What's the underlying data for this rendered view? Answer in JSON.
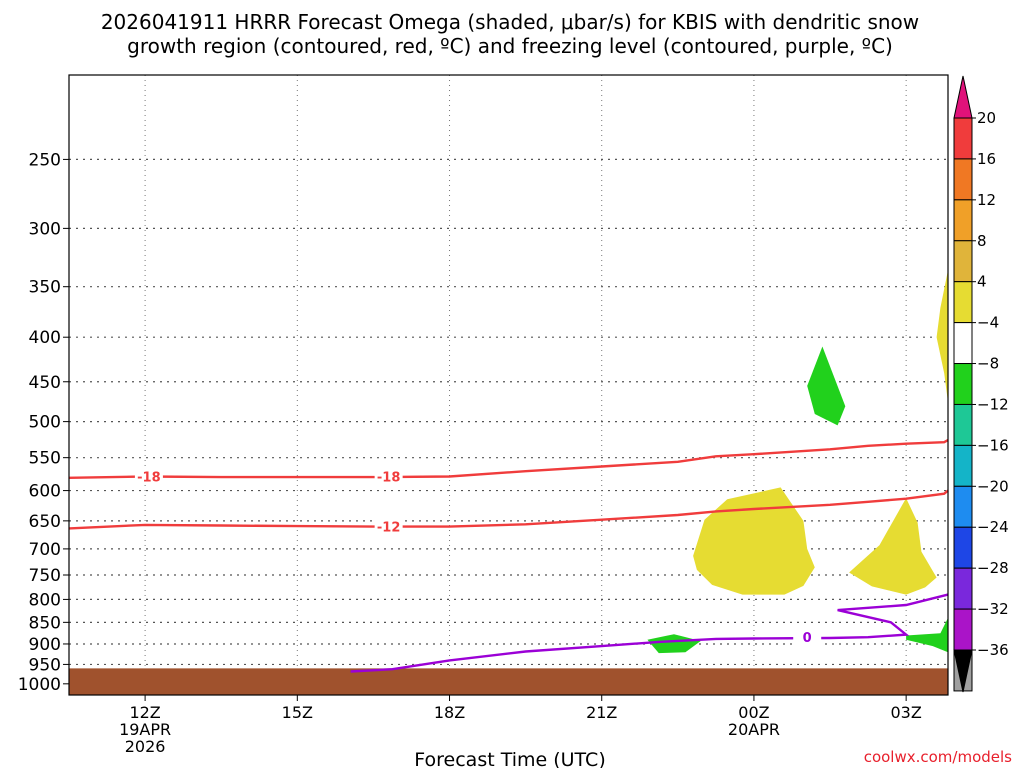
{
  "title_line1": "2026041911 HRRR Forecast Omega (shaded, μbar/s) for KBIS with dendritic snow",
  "title_line2": "growth region (contoured, red, ºC) and freezing level (contoured, purple, ºC)",
  "credit": "coolwx.com/models",
  "chart_data": {
    "type": "area",
    "xlabel": "Forecast Time (UTC)",
    "x_unit": "hours since 2026-04-19 10Z",
    "xlim": [
      0,
      23.1
    ],
    "y_levels": [
      250,
      300,
      350,
      400,
      450,
      500,
      550,
      600,
      650,
      700,
      750,
      800,
      850,
      900,
      950,
      1000
    ],
    "ylim": [
      200,
      1030
    ],
    "y_scale": "log-pressure",
    "grid": true,
    "x_ticks": [
      {
        "x": 2,
        "lines": [
          "12Z",
          "19APR",
          "2026"
        ]
      },
      {
        "x": 6,
        "lines": [
          "15Z"
        ]
      },
      {
        "x": 10,
        "lines": [
          "18Z"
        ]
      },
      {
        "x": 14,
        "lines": [
          "21Z"
        ]
      },
      {
        "x": 18,
        "lines": [
          "00Z",
          "20APR"
        ]
      },
      {
        "x": 22,
        "lines": [
          "03Z"
        ]
      }
    ],
    "contours": [
      {
        "name": "-18",
        "color": "#f03c3c",
        "points": [
          [
            0,
            580
          ],
          [
            2,
            578
          ],
          [
            4,
            579
          ],
          [
            6,
            579
          ],
          [
            8,
            579
          ],
          [
            10,
            578
          ],
          [
            12,
            570
          ],
          [
            14,
            563
          ],
          [
            16,
            556
          ],
          [
            17,
            548
          ],
          [
            18,
            545
          ],
          [
            20,
            538
          ],
          [
            21,
            533
          ],
          [
            22,
            530
          ],
          [
            23,
            528
          ],
          [
            23.1,
            525
          ]
        ],
        "labels": [
          {
            "x": 2.1,
            "p": 578,
            "text": "-18"
          },
          {
            "x": 8.4,
            "p": 578,
            "text": "-18"
          }
        ]
      },
      {
        "name": "-12",
        "color": "#f03c3c",
        "points": [
          [
            0,
            663
          ],
          [
            2,
            657
          ],
          [
            4,
            658
          ],
          [
            6,
            659
          ],
          [
            8,
            660
          ],
          [
            10,
            660
          ],
          [
            12,
            656
          ],
          [
            14,
            648
          ],
          [
            16,
            640
          ],
          [
            17,
            634
          ],
          [
            18,
            630
          ],
          [
            20,
            623
          ],
          [
            21,
            618
          ],
          [
            22,
            613
          ],
          [
            23,
            605
          ],
          [
            23.1,
            600
          ]
        ],
        "labels": [
          {
            "x": 8.4,
            "p": 660,
            "text": "-12"
          }
        ]
      },
      {
        "name": "0",
        "color": "#9b00d6",
        "points": [
          [
            7.4,
            968
          ],
          [
            8.5,
            962
          ],
          [
            10,
            940
          ],
          [
            12,
            918
          ],
          [
            14,
            905
          ],
          [
            15.5,
            895
          ],
          [
            17,
            888
          ],
          [
            18,
            887
          ],
          [
            20,
            886
          ],
          [
            21,
            884
          ],
          [
            22,
            878
          ],
          [
            21.6,
            850
          ],
          [
            20.2,
            823
          ],
          [
            22,
            812
          ],
          [
            23.1,
            790
          ]
        ],
        "labels": [
          {
            "x": 19.4,
            "p": 884,
            "text": "0"
          }
        ]
      }
    ],
    "shaded_regions": [
      {
        "value_range": [
          4,
          8
        ],
        "color": "#e6dc32",
        "points": [
          [
            16.4,
            713
          ],
          [
            16.7,
            648
          ],
          [
            17.3,
            614
          ],
          [
            18.7,
            595
          ],
          [
            19.3,
            650
          ],
          [
            19.4,
            700
          ],
          [
            19.6,
            735
          ],
          [
            19.3,
            772
          ],
          [
            18.8,
            790
          ],
          [
            17.7,
            790
          ],
          [
            16.9,
            770
          ],
          [
            16.5,
            740
          ]
        ]
      },
      {
        "value_range": [
          4,
          8
        ],
        "color": "#e6dc32",
        "points": [
          [
            20.5,
            745
          ],
          [
            21.3,
            693
          ],
          [
            22.0,
            612
          ],
          [
            22.3,
            653
          ],
          [
            22.4,
            705
          ],
          [
            22.8,
            755
          ],
          [
            22.5,
            775
          ],
          [
            22.0,
            790
          ],
          [
            21.1,
            773
          ]
        ]
      },
      {
        "value_range": [
          4,
          8
        ],
        "color": "#e6dc32",
        "points": [
          [
            23.1,
            335
          ],
          [
            22.9,
            370
          ],
          [
            22.8,
            400
          ],
          [
            23.0,
            440
          ],
          [
            23.1,
            475
          ]
        ]
      },
      {
        "value_range": [
          -8,
          -4
        ],
        "color": "#21d11c",
        "points": [
          [
            19.4,
            455
          ],
          [
            19.8,
            410
          ],
          [
            20.4,
            480
          ],
          [
            20.2,
            505
          ],
          [
            19.6,
            490
          ]
        ]
      },
      {
        "value_range": [
          -8,
          -4
        ],
        "color": "#21d11c",
        "points": [
          [
            15.2,
            890
          ],
          [
            15.9,
            877
          ],
          [
            16.6,
            893
          ],
          [
            16.2,
            920
          ],
          [
            15.5,
            922
          ]
        ]
      },
      {
        "value_range": [
          -8,
          -4
        ],
        "color": "#21d11c",
        "points": [
          [
            22.0,
            880
          ],
          [
            22.9,
            875
          ],
          [
            23.1,
            840
          ],
          [
            23.1,
            920
          ],
          [
            22.7,
            905
          ],
          [
            22.0,
            890
          ]
        ]
      }
    ],
    "terrain_pressure_hPa": 960,
    "colorbar": {
      "ticks": [
        "20",
        "16",
        "12",
        "8",
        "4",
        "−4",
        "−8",
        "−12",
        "−16",
        "−20",
        "−24",
        "−28",
        "−32",
        "−36"
      ],
      "colors": [
        "#f03c3c",
        "#f07823",
        "#f0a028",
        "#e0b43a",
        "#e6dc32",
        "#ffffff",
        "#21d11c",
        "#1ec896",
        "#14b4c8",
        "#1e8cf0",
        "#1e46e6",
        "#7a28dc",
        "#aa14c8",
        "#a0a0a0"
      ],
      "top_arrow": "#e0127a",
      "bottom_arrow": "#000000"
    }
  }
}
